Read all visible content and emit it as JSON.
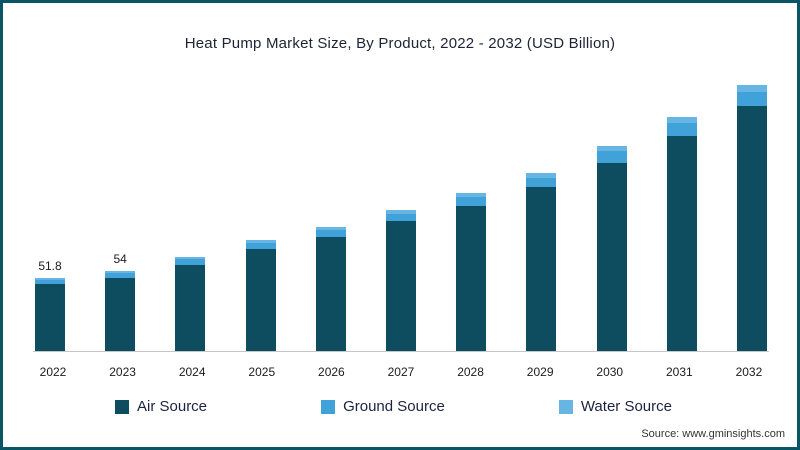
{
  "source": "Source: www.gminsights.com",
  "chart_data": {
    "type": "bar",
    "stacked": true,
    "title": "Heat Pump Market Size, By Product, 2022 - 2032 (USD Billion)",
    "xlabel": "",
    "ylabel": "",
    "unit": "USD Billion",
    "grid": false,
    "value_axis_visible": false,
    "legend_position": "bottom",
    "categories": [
      "2022",
      "2023",
      "2024",
      "2025",
      "2026",
      "2027",
      "2028",
      "2029",
      "2030",
      "2031",
      "2032"
    ],
    "series": [
      {
        "name": "Air Source",
        "color": "#0e4d5f",
        "values": [
          47.7,
          49.6,
          54.3,
          59.4,
          63.5,
          68.5,
          74.1,
          80.0,
          88.3,
          97.5,
          107.2
        ]
      },
      {
        "name": "Ground Source",
        "color": "#41a2da",
        "values": [
          2.8,
          3.0,
          3.2,
          3.5,
          3.8,
          4.1,
          4.4,
          4.8,
          5.3,
          5.8,
          6.4
        ]
      },
      {
        "name": "Water Source",
        "color": "#67b5e2",
        "values": [
          1.3,
          1.4,
          1.5,
          1.6,
          1.7,
          1.9,
          2.0,
          2.2,
          2.4,
          2.7,
          2.9
        ]
      }
    ],
    "totals": [
      51.8,
      54,
      59,
      64.5,
      69,
      74.5,
      80.5,
      87,
      96,
      106,
      116.5
    ],
    "data_labels": {
      "2022": "51.8",
      "2023": "54"
    }
  }
}
